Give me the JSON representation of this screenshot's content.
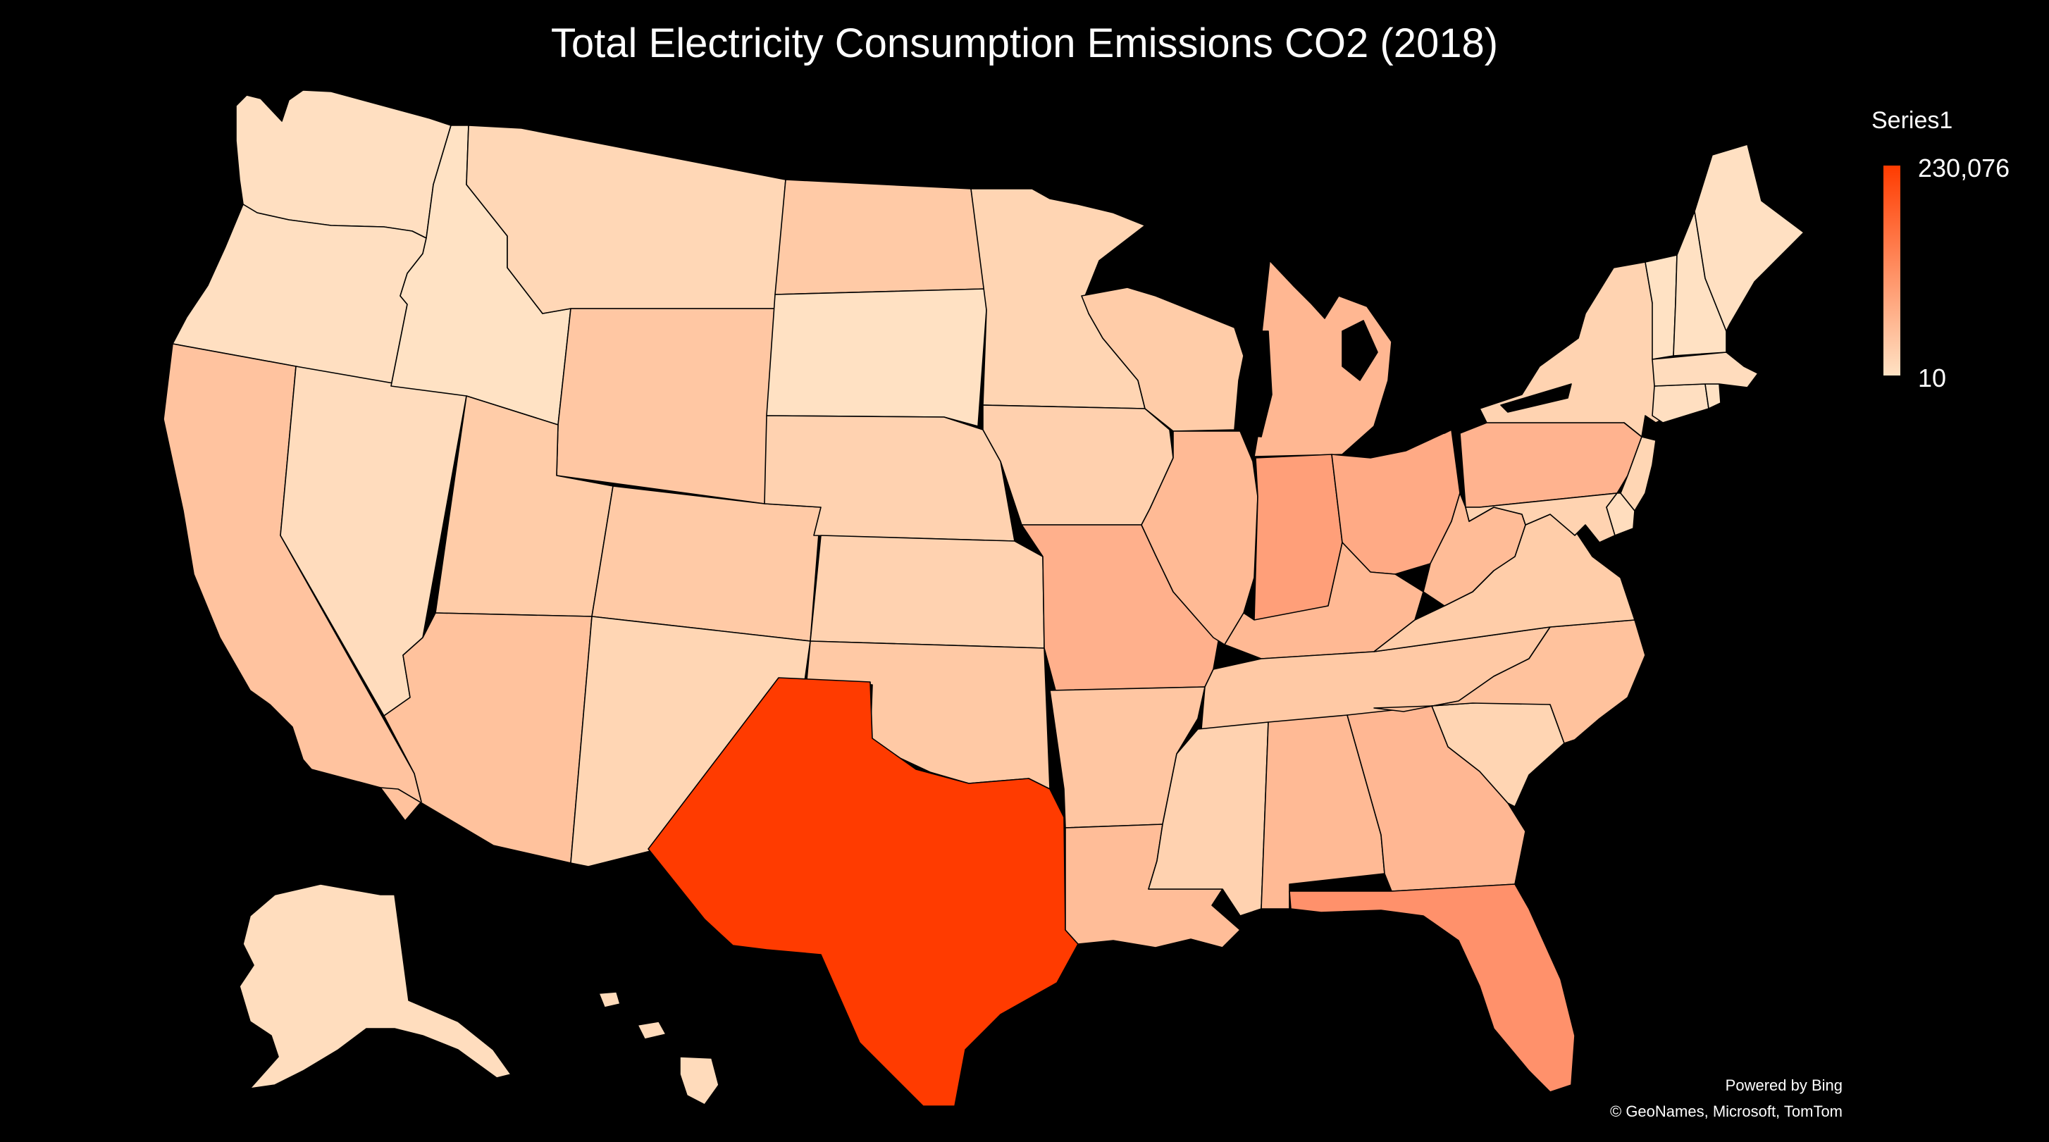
{
  "title": "Total Electricity Consumption Emissions CO2 (2018)",
  "legend": {
    "series_name": "Series1",
    "max_label": "230,076",
    "min_label": "10",
    "min_value": 10,
    "max_value": 230076,
    "color_low": "#FFE2C4",
    "color_high": "#FF3B00"
  },
  "attribution": {
    "line1": "Powered by Bing",
    "line2": "© GeoNames, Microsoft, TomTom"
  },
  "colors": {
    "background": "#000000",
    "border": "#000000",
    "text": "#FFFFFF"
  },
  "chart_data": {
    "type": "choropleth",
    "region": "United States",
    "states": [
      {
        "state": "Washington",
        "fill": "#FFDFC1"
      },
      {
        "state": "Oregon",
        "fill": "#FFDFC1"
      },
      {
        "state": "California",
        "fill": "#FFC39F"
      },
      {
        "state": "Nevada",
        "fill": "#FFDCBD"
      },
      {
        "state": "Idaho",
        "fill": "#FFE2C4"
      },
      {
        "state": "Montana",
        "fill": "#FFD7B6"
      },
      {
        "state": "Wyoming",
        "fill": "#FFC7A3"
      },
      {
        "state": "Utah",
        "fill": "#FFCCA8"
      },
      {
        "state": "Arizona",
        "fill": "#FFC29D"
      },
      {
        "state": "Colorado",
        "fill": "#FFCAA6"
      },
      {
        "state": "New Mexico",
        "fill": "#FFD6B4"
      },
      {
        "state": "North Dakota",
        "fill": "#FFCAA6"
      },
      {
        "state": "South Dakota",
        "fill": "#FFE1C3"
      },
      {
        "state": "Nebraska",
        "fill": "#FFD2B0"
      },
      {
        "state": "Kansas",
        "fill": "#FFD2B0"
      },
      {
        "state": "Oklahoma",
        "fill": "#FFC9A5"
      },
      {
        "state": "Texas",
        "fill": "#FF3B00"
      },
      {
        "state": "Minnesota",
        "fill": "#FFD5B3"
      },
      {
        "state": "Iowa",
        "fill": "#FFD0AE"
      },
      {
        "state": "Missouri",
        "fill": "#FFB08C"
      },
      {
        "state": "Arkansas",
        "fill": "#FFC6A2"
      },
      {
        "state": "Louisiana",
        "fill": "#FFBD98"
      },
      {
        "state": "Wisconsin",
        "fill": "#FFCCA8"
      },
      {
        "state": "Illinois",
        "fill": "#FFBA95"
      },
      {
        "state": "Michigan",
        "fill": "#FFB792"
      },
      {
        "state": "Indiana",
        "fill": "#FF9F79"
      },
      {
        "state": "Ohio",
        "fill": "#FFAA85"
      },
      {
        "state": "Kentucky",
        "fill": "#FFB994"
      },
      {
        "state": "Tennessee",
        "fill": "#FFC9A5"
      },
      {
        "state": "Mississippi",
        "fill": "#FFD2B0"
      },
      {
        "state": "Alabama",
        "fill": "#FFBA95"
      },
      {
        "state": "Georgia",
        "fill": "#FFB793"
      },
      {
        "state": "Florida",
        "fill": "#FF916B"
      },
      {
        "state": "South Carolina",
        "fill": "#FFD5B3"
      },
      {
        "state": "North Carolina",
        "fill": "#FFC29D"
      },
      {
        "state": "Virginia",
        "fill": "#FFCDA9"
      },
      {
        "state": "West Virginia",
        "fill": "#FFBC97"
      },
      {
        "state": "Pennsylvania",
        "fill": "#FFB38F"
      },
      {
        "state": "New York",
        "fill": "#FFD3B1"
      },
      {
        "state": "Maryland",
        "fill": "#FFD3B1"
      },
      {
        "state": "Delaware",
        "fill": "#FFDDBE"
      },
      {
        "state": "New Jersey",
        "fill": "#FFD6B4"
      },
      {
        "state": "Connecticut",
        "fill": "#FFDFC1"
      },
      {
        "state": "Rhode Island",
        "fill": "#FFE2C4"
      },
      {
        "state": "Massachusetts",
        "fill": "#FFDCBD"
      },
      {
        "state": "Vermont",
        "fill": "#FFE2C4"
      },
      {
        "state": "New Hampshire",
        "fill": "#FFE1C3"
      },
      {
        "state": "Maine",
        "fill": "#FFE0C2"
      },
      {
        "state": "Alaska",
        "fill": "#FFDDBE"
      },
      {
        "state": "Hawaii",
        "fill": "#FFDBBB"
      }
    ]
  }
}
